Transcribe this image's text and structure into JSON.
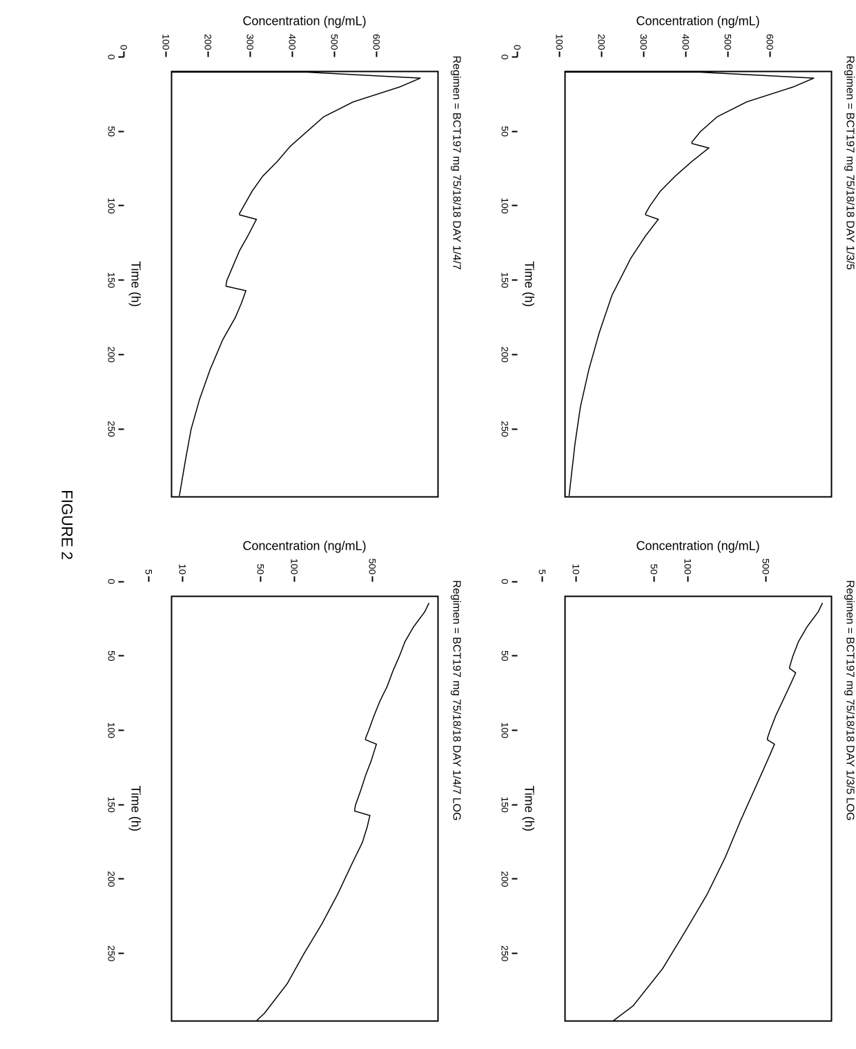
{
  "figure_caption": "FIGURE 2",
  "colors": {
    "line": "#000000",
    "axis": "#000000",
    "background": "#ffffff"
  },
  "line_width": 1.5,
  "panels": [
    {
      "id": "p1",
      "title": "Regimen = BCT197 mg 75/18/18 DAY 1/3/5",
      "xlabel": "Time (h)",
      "ylabel": "Concentration (ng/mL)",
      "xlim": [
        0,
        285
      ],
      "ylim": [
        0,
        630
      ],
      "xticks": [
        0,
        50,
        100,
        150,
        200,
        250
      ],
      "yticks": [
        0,
        100,
        200,
        300,
        400,
        500,
        600
      ],
      "scale": "linear",
      "series": [
        [
          0,
          0
        ],
        [
          0,
          320
        ],
        [
          4,
          590
        ],
        [
          10,
          540
        ],
        [
          20,
          430
        ],
        [
          30,
          360
        ],
        [
          40,
          320
        ],
        [
          47,
          300
        ],
        [
          48,
          300
        ],
        [
          51,
          340
        ],
        [
          60,
          300
        ],
        [
          70,
          260
        ],
        [
          80,
          225
        ],
        [
          90,
          200
        ],
        [
          95,
          190
        ],
        [
          96,
          190
        ],
        [
          99,
          220
        ],
        [
          110,
          190
        ],
        [
          125,
          155
        ],
        [
          150,
          110
        ],
        [
          175,
          80
        ],
        [
          200,
          55
        ],
        [
          225,
          35
        ],
        [
          250,
          22
        ],
        [
          275,
          12
        ],
        [
          285,
          8
        ]
      ]
    },
    {
      "id": "p2",
      "title": "Regimen = BCT197 mg 75/18/18 DAY 1/3/5 LOG",
      "xlabel": "Time (h)",
      "ylabel": "Concentration (ng/mL)",
      "xlim": [
        0,
        285
      ],
      "ylim_log": [
        3,
        700
      ],
      "xticks": [
        0,
        50,
        100,
        150,
        200,
        250
      ],
      "yticks_log": [
        5,
        10,
        50,
        100,
        500
      ],
      "scale": "log",
      "series": [
        [
          4,
          590
        ],
        [
          10,
          540
        ],
        [
          20,
          430
        ],
        [
          30,
          360
        ],
        [
          40,
          320
        ],
        [
          47,
          300
        ],
        [
          48,
          300
        ],
        [
          51,
          340
        ],
        [
          60,
          300
        ],
        [
          70,
          260
        ],
        [
          80,
          225
        ],
        [
          90,
          200
        ],
        [
          95,
          190
        ],
        [
          96,
          190
        ],
        [
          99,
          220
        ],
        [
          110,
          190
        ],
        [
          125,
          155
        ],
        [
          150,
          110
        ],
        [
          175,
          80
        ],
        [
          200,
          55
        ],
        [
          225,
          35
        ],
        [
          250,
          22
        ],
        [
          275,
          12
        ],
        [
          285,
          8
        ]
      ]
    },
    {
      "id": "p3",
      "title": "Regimen = BCT197 mg 75/18/18 DAY 1/4/7",
      "xlabel": "Time (h)",
      "ylabel": "Concentration (ng/mL)",
      "xlim": [
        0,
        285
      ],
      "ylim": [
        0,
        630
      ],
      "xticks": [
        0,
        50,
        100,
        150,
        200,
        250
      ],
      "yticks": [
        0,
        100,
        200,
        300,
        400,
        500,
        600
      ],
      "scale": "linear",
      "series": [
        [
          0,
          0
        ],
        [
          0,
          320
        ],
        [
          4,
          590
        ],
        [
          10,
          540
        ],
        [
          20,
          430
        ],
        [
          30,
          360
        ],
        [
          40,
          320
        ],
        [
          50,
          280
        ],
        [
          60,
          250
        ],
        [
          70,
          215
        ],
        [
          80,
          190
        ],
        [
          90,
          170
        ],
        [
          95,
          160
        ],
        [
          96,
          160
        ],
        [
          99,
          200
        ],
        [
          110,
          180
        ],
        [
          120,
          160
        ],
        [
          130,
          145
        ],
        [
          140,
          130
        ],
        [
          143,
          128
        ],
        [
          144,
          128
        ],
        [
          147,
          175
        ],
        [
          155,
          165
        ],
        [
          165,
          150
        ],
        [
          180,
          120
        ],
        [
          200,
          90
        ],
        [
          220,
          65
        ],
        [
          240,
          45
        ],
        [
          260,
          32
        ],
        [
          280,
          20
        ],
        [
          285,
          17
        ]
      ]
    },
    {
      "id": "p4",
      "title": "Regimen = BCT197 mg 75/18/18 DAY 1/4/7 LOG",
      "xlabel": "Time (h)",
      "ylabel": "Concentration (ng/mL)",
      "xlim": [
        0,
        285
      ],
      "ylim_log": [
        3,
        700
      ],
      "xticks": [
        0,
        50,
        100,
        150,
        200,
        250
      ],
      "yticks_log": [
        5,
        10,
        50,
        100,
        500
      ],
      "scale": "log",
      "series": [
        [
          4,
          590
        ],
        [
          10,
          540
        ],
        [
          20,
          430
        ],
        [
          30,
          360
        ],
        [
          40,
          320
        ],
        [
          50,
          280
        ],
        [
          60,
          250
        ],
        [
          70,
          215
        ],
        [
          80,
          190
        ],
        [
          90,
          170
        ],
        [
          95,
          160
        ],
        [
          96,
          160
        ],
        [
          99,
          200
        ],
        [
          110,
          180
        ],
        [
          120,
          160
        ],
        [
          130,
          145
        ],
        [
          140,
          130
        ],
        [
          143,
          128
        ],
        [
          144,
          128
        ],
        [
          147,
          175
        ],
        [
          155,
          165
        ],
        [
          165,
          150
        ],
        [
          180,
          120
        ],
        [
          200,
          90
        ],
        [
          220,
          65
        ],
        [
          240,
          45
        ],
        [
          260,
          32
        ],
        [
          280,
          20
        ],
        [
          285,
          17
        ]
      ]
    }
  ]
}
